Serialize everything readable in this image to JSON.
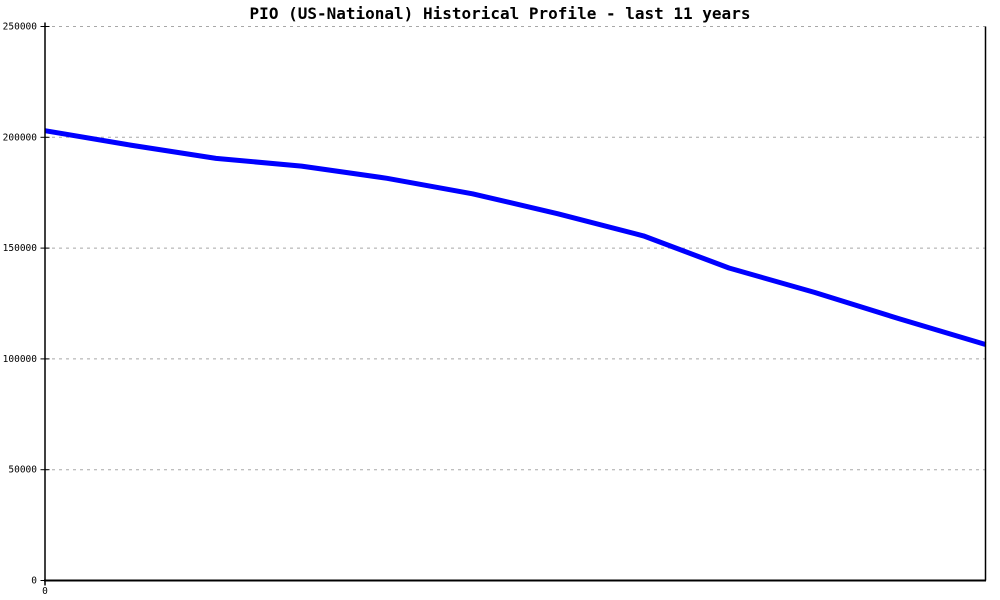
{
  "page": {
    "background_color": "#ffffff"
  },
  "chart_data": {
    "type": "line",
    "title": "PIO (US-National) Historical Profile - last 11 years",
    "subtitle": "",
    "xlabel": "",
    "ylabel": "",
    "x": [
      0,
      1,
      2,
      3,
      4,
      5,
      6,
      7,
      8,
      9,
      10,
      11
    ],
    "values": [
      203000,
      196500,
      190500,
      187000,
      181500,
      174500,
      165500,
      155500,
      141000,
      130000,
      118000,
      106500
    ],
    "ylim": [
      0,
      250000
    ],
    "yticks": [
      0,
      50000,
      100000,
      150000,
      200000,
      250000
    ],
    "ytick_labels": [
      "0",
      "50000",
      "100000",
      "150000",
      "200000",
      "250000"
    ],
    "x_tick_labels": [
      {
        "x": 0,
        "label": "0"
      }
    ],
    "line_color": "#0000ff",
    "line_width": 5,
    "grid": {
      "horizontal": true,
      "style": "dashed",
      "color": "#a8a8a8"
    },
    "axis_color": "#000000",
    "legend": "none"
  }
}
